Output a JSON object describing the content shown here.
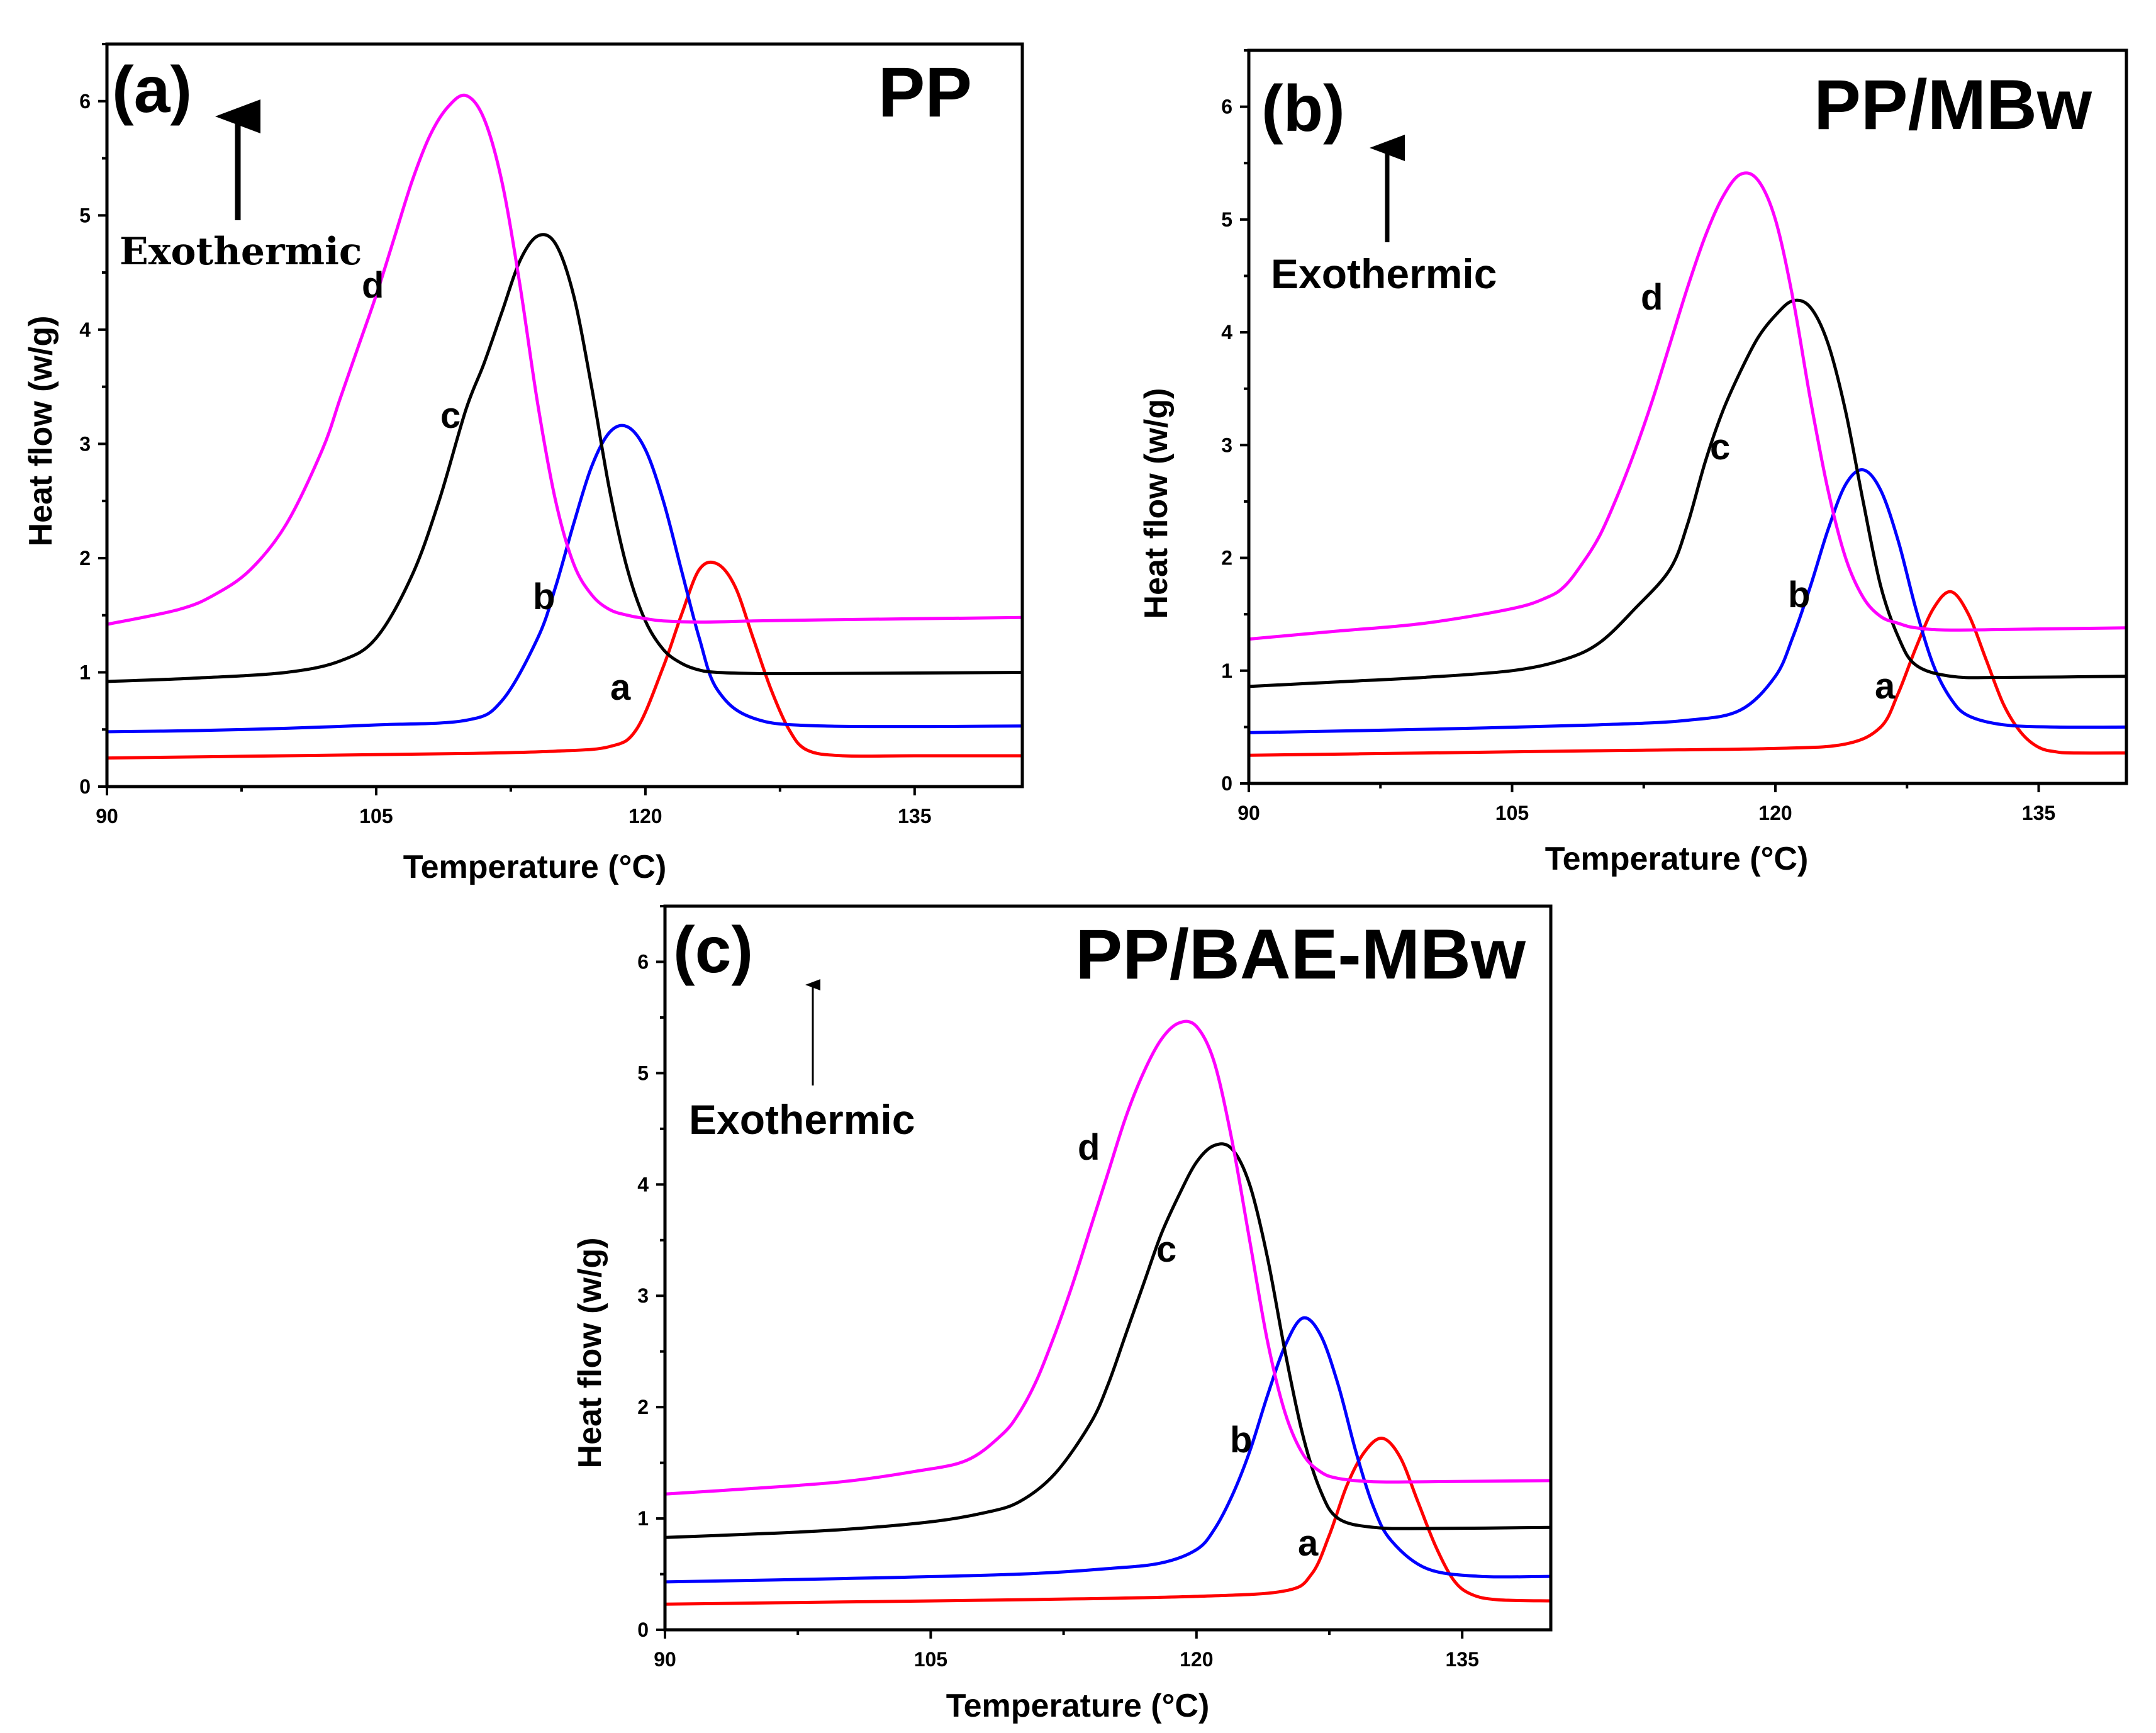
{
  "chart_data": [
    {
      "type": "line",
      "panel_label": "(a)",
      "title": "PP",
      "xlabel": "Temperature (°C)",
      "ylabel": "Heat flow (w/g)",
      "xlim": [
        90,
        141
      ],
      "ylim": [
        0,
        6.5
      ],
      "xticks": [
        90,
        105,
        120,
        135
      ],
      "yticks": [
        0,
        1,
        2,
        3,
        4,
        5,
        6
      ],
      "annotation": "Exothermic",
      "series": [
        {
          "label": "a",
          "color": "#ff0000",
          "x": [
            90,
            100,
            110,
            115,
            118,
            119.5,
            121,
            122,
            123,
            124,
            125,
            126,
            127,
            128,
            129,
            131,
            135,
            141
          ],
          "y": [
            0.25,
            0.27,
            0.29,
            0.31,
            0.35,
            0.5,
            1.05,
            1.5,
            1.9,
            1.95,
            1.75,
            1.3,
            0.85,
            0.5,
            0.32,
            0.27,
            0.27,
            0.27
          ]
        },
        {
          "label": "b",
          "color": "#0000ff",
          "x": [
            90,
            95,
            100,
            105,
            110,
            112,
            114,
            115,
            116,
            117,
            118,
            119,
            120,
            121,
            122,
            123,
            124,
            126,
            130,
            141
          ],
          "y": [
            0.48,
            0.49,
            0.51,
            0.54,
            0.58,
            0.75,
            1.3,
            1.75,
            2.3,
            2.8,
            3.1,
            3.15,
            2.95,
            2.5,
            1.9,
            1.3,
            0.85,
            0.6,
            0.53,
            0.53
          ]
        },
        {
          "label": "c",
          "color": "#000000",
          "x": [
            90,
            95,
            100,
            103,
            105,
            107,
            108.5,
            110,
            111,
            112,
            113,
            114,
            115,
            116,
            117,
            118,
            119,
            120,
            121,
            122,
            123,
            124,
            126,
            130,
            141
          ],
          "y": [
            0.92,
            0.95,
            1.0,
            1.1,
            1.3,
            1.85,
            2.5,
            3.3,
            3.7,
            4.15,
            4.6,
            4.82,
            4.75,
            4.3,
            3.5,
            2.6,
            1.9,
            1.45,
            1.2,
            1.08,
            1.02,
            1.0,
            0.99,
            0.99,
            1.0
          ]
        },
        {
          "label": "d",
          "color": "#ff00ff",
          "x": [
            90,
            94,
            96,
            98,
            100,
            102,
            103,
            104,
            105,
            106,
            107,
            108,
            109,
            110,
            111,
            112,
            113,
            114,
            115,
            116,
            117,
            118,
            119,
            120,
            121,
            123,
            126,
            130,
            141
          ],
          "y": [
            1.42,
            1.55,
            1.68,
            1.9,
            2.3,
            2.95,
            3.4,
            3.85,
            4.3,
            4.8,
            5.3,
            5.7,
            5.95,
            6.05,
            5.85,
            5.3,
            4.4,
            3.35,
            2.5,
            1.95,
            1.68,
            1.55,
            1.5,
            1.47,
            1.45,
            1.44,
            1.45,
            1.46,
            1.48
          ]
        }
      ],
      "curve_labels": [
        "a",
        "b",
        "c",
        "d"
      ]
    },
    {
      "type": "line",
      "panel_label": "(b)",
      "title": "PP/MBw",
      "xlabel": "Temperature (°C)",
      "ylabel": "Heat flow (w/g)",
      "xlim": [
        90,
        140
      ],
      "ylim": [
        0,
        6.5
      ],
      "xticks": [
        90,
        105,
        120,
        135
      ],
      "yticks": [
        0,
        1,
        2,
        3,
        4,
        5,
        6
      ],
      "annotation": "Exothermic",
      "series": [
        {
          "label": "a",
          "color": "#ff0000",
          "x": [
            90,
            100,
            110,
            120,
            124,
            126,
            127,
            128,
            129,
            130,
            131,
            132,
            133,
            134,
            135,
            136,
            137,
            140
          ],
          "y": [
            0.25,
            0.27,
            0.29,
            0.31,
            0.35,
            0.5,
            0.8,
            1.2,
            1.55,
            1.7,
            1.5,
            1.1,
            0.7,
            0.45,
            0.32,
            0.28,
            0.27,
            0.27
          ]
        },
        {
          "label": "b",
          "color": "#0000ff",
          "x": [
            90,
            100,
            110,
            115,
            118,
            120,
            121,
            122,
            123,
            124,
            125,
            126,
            127,
            128,
            129,
            130,
            131,
            133,
            136,
            140
          ],
          "y": [
            0.45,
            0.48,
            0.52,
            0.56,
            0.65,
            0.95,
            1.3,
            1.75,
            2.25,
            2.65,
            2.78,
            2.6,
            2.15,
            1.55,
            1.05,
            0.75,
            0.6,
            0.52,
            0.5,
            0.5
          ]
        },
        {
          "label": "c",
          "color": "#000000",
          "x": [
            90,
            95,
            100,
            105,
            108,
            110,
            112,
            114,
            115,
            116,
            117,
            118,
            119,
            120,
            121,
            122,
            123,
            124,
            125,
            126,
            127,
            128,
            130,
            133,
            140
          ],
          "y": [
            0.86,
            0.9,
            0.94,
            1.0,
            1.1,
            1.25,
            1.55,
            1.9,
            2.3,
            2.85,
            3.3,
            3.65,
            3.95,
            4.15,
            4.28,
            4.22,
            3.9,
            3.3,
            2.5,
            1.75,
            1.3,
            1.05,
            0.95,
            0.94,
            0.95
          ]
        },
        {
          "label": "d",
          "color": "#ff00ff",
          "x": [
            90,
            95,
            100,
            105,
            107,
            108,
            109,
            110,
            111,
            112,
            113,
            114,
            115,
            116,
            117,
            118,
            119,
            120,
            121,
            122,
            123,
            124,
            125,
            126,
            127,
            128,
            130,
            135,
            140
          ],
          "y": [
            1.28,
            1.35,
            1.42,
            1.55,
            1.65,
            1.75,
            1.95,
            2.2,
            2.55,
            2.95,
            3.4,
            3.9,
            4.4,
            4.85,
            5.2,
            5.4,
            5.35,
            5.0,
            4.3,
            3.4,
            2.6,
            2.0,
            1.65,
            1.48,
            1.42,
            1.38,
            1.36,
            1.37,
            1.38
          ]
        }
      ],
      "curve_labels": [
        "a",
        "b",
        "c",
        "d"
      ]
    },
    {
      "type": "line",
      "panel_label": "(c)",
      "title": "PP/BAE-MBw",
      "xlabel": "Temperature (°C)",
      "ylabel": "Heat flow (w/g)",
      "xlim": [
        90,
        140
      ],
      "ylim": [
        0,
        6.5
      ],
      "xticks": [
        90,
        105,
        120,
        135
      ],
      "yticks": [
        0,
        1,
        2,
        3,
        4,
        5,
        6
      ],
      "annotation": "Exothermic",
      "series": [
        {
          "label": "a",
          "color": "#ff0000",
          "x": [
            90,
            100,
            110,
            120,
            125,
            126.5,
            127.5,
            128.5,
            129.5,
            130.5,
            131.5,
            132.5,
            133.5,
            134.5,
            135.5,
            137,
            140
          ],
          "y": [
            0.23,
            0.25,
            0.27,
            0.3,
            0.35,
            0.5,
            0.85,
            1.3,
            1.6,
            1.72,
            1.55,
            1.15,
            0.75,
            0.45,
            0.32,
            0.27,
            0.26
          ]
        },
        {
          "label": "b",
          "color": "#0000ff",
          "x": [
            90,
            100,
            110,
            115,
            118,
            120,
            121,
            122,
            123,
            124,
            125,
            126,
            127,
            128,
            129,
            130,
            131,
            133,
            136,
            140
          ],
          "y": [
            0.43,
            0.46,
            0.5,
            0.55,
            0.6,
            0.72,
            0.9,
            1.2,
            1.6,
            2.1,
            2.55,
            2.8,
            2.65,
            2.2,
            1.6,
            1.1,
            0.8,
            0.55,
            0.48,
            0.48
          ]
        },
        {
          "label": "c",
          "color": "#000000",
          "x": [
            90,
            95,
            100,
            105,
            108,
            110,
            112,
            114,
            115,
            116,
            117,
            118,
            119,
            120,
            121,
            122,
            123,
            124,
            125,
            126,
            127,
            128,
            130,
            133,
            140
          ],
          "y": [
            0.83,
            0.86,
            0.9,
            0.97,
            1.05,
            1.15,
            1.4,
            1.85,
            2.2,
            2.65,
            3.1,
            3.55,
            3.9,
            4.2,
            4.35,
            4.32,
            4.0,
            3.35,
            2.5,
            1.75,
            1.25,
            1.0,
            0.92,
            0.91,
            0.92
          ]
        },
        {
          "label": "d",
          "color": "#ff00ff",
          "x": [
            90,
            95,
            100,
            104,
            107,
            109,
            110,
            111,
            112,
            113,
            114,
            115,
            116,
            117,
            118,
            119,
            120,
            121,
            122,
            123,
            124,
            125,
            126,
            127,
            128,
            130,
            133,
            140
          ],
          "y": [
            1.22,
            1.27,
            1.33,
            1.42,
            1.52,
            1.75,
            1.95,
            2.25,
            2.65,
            3.1,
            3.6,
            4.1,
            4.6,
            5.0,
            5.3,
            5.45,
            5.42,
            5.1,
            4.4,
            3.5,
            2.6,
            1.95,
            1.58,
            1.42,
            1.36,
            1.33,
            1.33,
            1.34
          ]
        }
      ],
      "curve_labels": [
        "a",
        "b",
        "c",
        "d"
      ]
    }
  ]
}
